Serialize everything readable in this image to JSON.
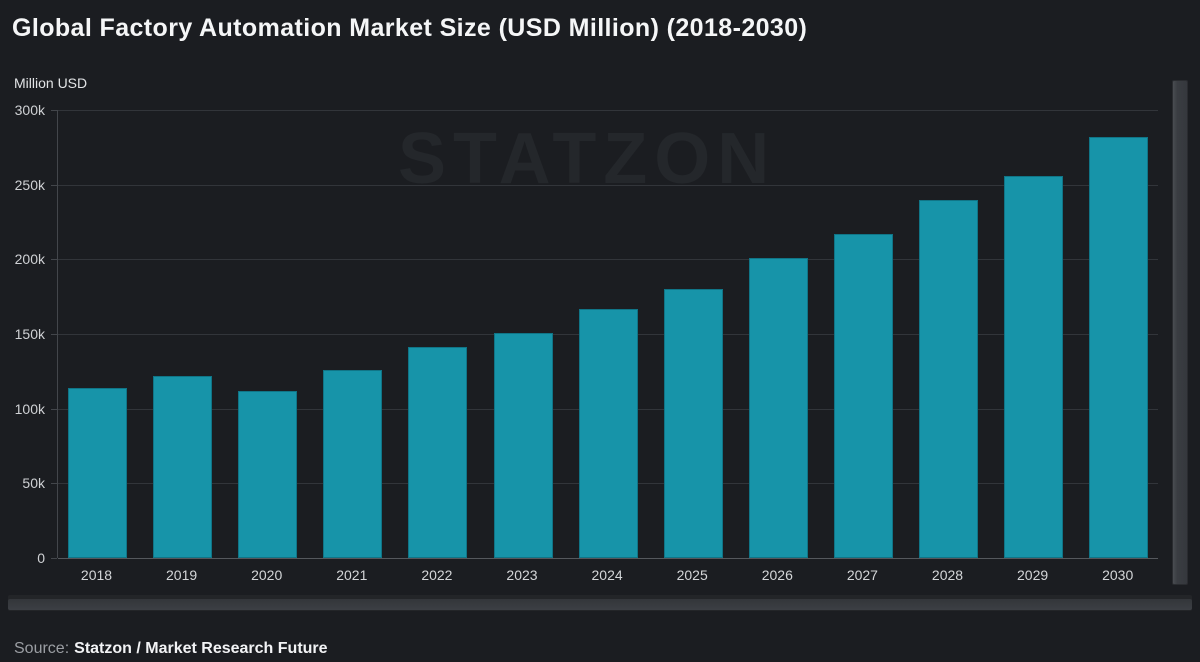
{
  "header": {
    "title": "Global Factory Automation Market Size (USD Million) (2018-2030)",
    "y_axis_unit": "Million USD"
  },
  "watermark": {
    "text": "STATZON"
  },
  "footer": {
    "source_label": "Source:",
    "source_value": "Statzon / Market Research Future"
  },
  "chart_data": {
    "type": "bar",
    "title": "Global Factory Automation Market Size (USD Million) (2018-2030)",
    "xlabel": "",
    "ylabel": "Million USD",
    "categories": [
      "2018",
      "2019",
      "2020",
      "2021",
      "2022",
      "2023",
      "2024",
      "2025",
      "2026",
      "2027",
      "2028",
      "2029",
      "2030"
    ],
    "values": [
      114000,
      122000,
      112000,
      126000,
      141000,
      151000,
      167000,
      180000,
      201000,
      217000,
      240000,
      256000,
      282000
    ],
    "ylim": [
      0,
      300000
    ],
    "ytick_interval": 50000,
    "ytick_labels": [
      "0",
      "50k",
      "100k",
      "150k",
      "200k",
      "250k",
      "300k"
    ],
    "grid": true,
    "legend_position": "none",
    "bar_color": "#1794a9",
    "bar_border_color": "#107587",
    "background_color": "#1b1d21",
    "gridline_color": "#32353a"
  },
  "scrollbars": {
    "vertical": "vertical-zoom-slider",
    "horizontal": "horizontal-zoom-slider"
  }
}
